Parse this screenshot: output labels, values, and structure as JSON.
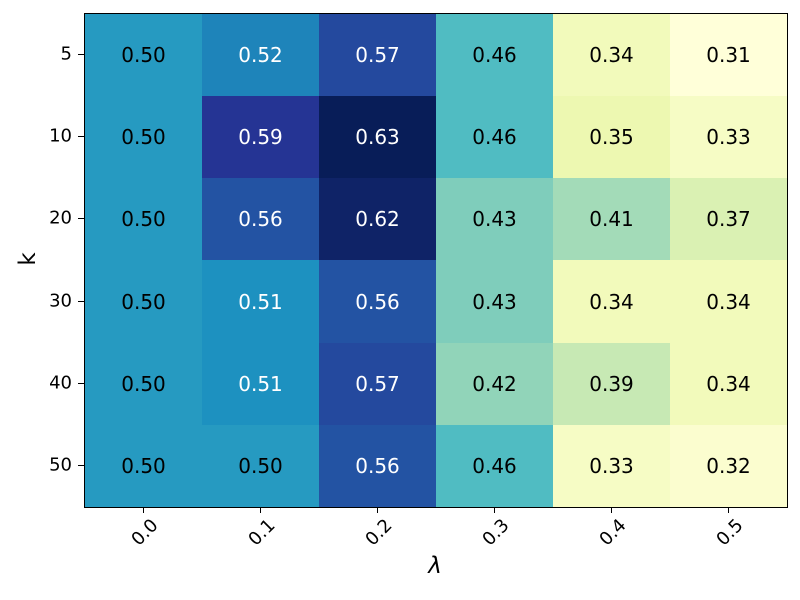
{
  "figure": {
    "background": "#ffffff"
  },
  "chart_data": {
    "type": "heatmap",
    "title": "",
    "xlabel": "λ",
    "ylabel": "k",
    "x_tick_labels": [
      "0.0",
      "0.1",
      "0.2",
      "0.3",
      "0.4",
      "0.5"
    ],
    "y_tick_labels": [
      "5",
      "10",
      "20",
      "30",
      "40",
      "50"
    ],
    "rows": [
      {
        "k": "5",
        "values": [
          0.5,
          0.52,
          0.57,
          0.46,
          0.34,
          0.31
        ]
      },
      {
        "k": "10",
        "values": [
          0.5,
          0.59,
          0.63,
          0.46,
          0.35,
          0.33
        ]
      },
      {
        "k": "20",
        "values": [
          0.5,
          0.56,
          0.62,
          0.43,
          0.41,
          0.37
        ]
      },
      {
        "k": "30",
        "values": [
          0.5,
          0.51,
          0.56,
          0.43,
          0.34,
          0.34
        ]
      },
      {
        "k": "40",
        "values": [
          0.5,
          0.51,
          0.57,
          0.42,
          0.39,
          0.34
        ]
      },
      {
        "k": "50",
        "values": [
          0.5,
          0.5,
          0.56,
          0.46,
          0.33,
          0.32
        ]
      }
    ],
    "value_decimals": 2,
    "vmin": 0.31,
    "vmax": 0.63,
    "colormap": {
      "name": "YlGnBu",
      "stops": [
        [
          0.0,
          "#ffffd9"
        ],
        [
          0.125,
          "#edf8b1"
        ],
        [
          0.25,
          "#c7e9b4"
        ],
        [
          0.375,
          "#7fcdbb"
        ],
        [
          0.5,
          "#41b6c4"
        ],
        [
          0.625,
          "#1d91c0"
        ],
        [
          0.75,
          "#225ea8"
        ],
        [
          0.875,
          "#253494"
        ],
        [
          1.0,
          "#081d58"
        ]
      ]
    },
    "annotation_text_rule": {
      "white_above": 0.5,
      "white": "#ffffff",
      "black": "#000000"
    },
    "axis_color": "#000000",
    "grid": false,
    "legend": false
  }
}
